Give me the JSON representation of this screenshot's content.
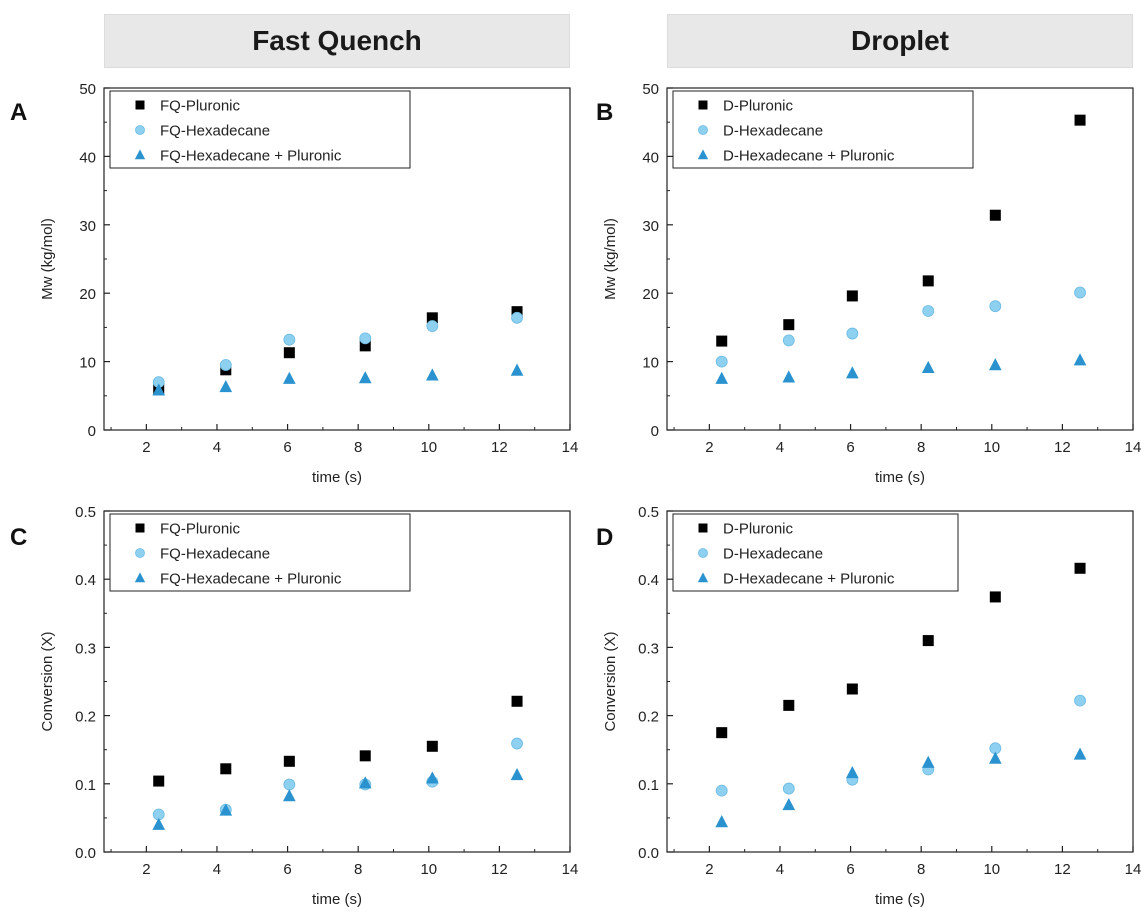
{
  "headers": {
    "left": "Fast Quench",
    "right": "Droplet"
  },
  "chart_data": [
    {
      "type": "scatter",
      "panel_label": "A",
      "xlabel": "time (s)",
      "ylabel": "Mw (kg/mol)",
      "xlim": [
        0.8,
        14
      ],
      "ylim": [
        0,
        50
      ],
      "xticks": [
        2,
        4,
        6,
        8,
        10,
        12,
        14
      ],
      "yticks": [
        0,
        10,
        20,
        30,
        40,
        50
      ],
      "ytick_labels": [
        "0",
        "10",
        "20",
        "30",
        "40",
        "50"
      ],
      "legend_position": "top-left",
      "x": [
        2.35,
        4.25,
        6.05,
        8.2,
        10.1,
        12.5
      ],
      "series": [
        {
          "name": "FQ-Pluronic",
          "marker": "square",
          "color": "#000000",
          "values": [
            6.0,
            8.8,
            11.3,
            12.3,
            16.4,
            17.3
          ]
        },
        {
          "name": "FQ-Hexadecane",
          "marker": "circle",
          "color": "#8ed0f0",
          "values": [
            7.0,
            9.5,
            13.2,
            13.4,
            15.2,
            16.4
          ]
        },
        {
          "name": "FQ-Hexadecane + Pluronic",
          "marker": "triangle",
          "color": "#2a93cf",
          "values": [
            5.8,
            6.3,
            7.5,
            7.6,
            8.0,
            8.7
          ]
        }
      ]
    },
    {
      "type": "scatter",
      "panel_label": "B",
      "xlabel": "time (s)",
      "ylabel": "Mw (kg/mol)",
      "xlim": [
        0.8,
        14
      ],
      "ylim": [
        0,
        50
      ],
      "xticks": [
        2,
        4,
        6,
        8,
        10,
        12,
        14
      ],
      "yticks": [
        0,
        10,
        20,
        30,
        40,
        50
      ],
      "ytick_labels": [
        "0",
        "10",
        "20",
        "30",
        "40",
        "50"
      ],
      "legend_position": "top-left",
      "x": [
        2.35,
        4.25,
        6.05,
        8.2,
        10.1,
        12.5
      ],
      "series": [
        {
          "name": "D-Pluronic",
          "marker": "square",
          "color": "#000000",
          "values": [
            13.0,
            15.4,
            19.6,
            21.8,
            31.4,
            45.3
          ]
        },
        {
          "name": "D-Hexadecane",
          "marker": "circle",
          "color": "#8ed0f0",
          "values": [
            10.0,
            13.1,
            14.1,
            17.4,
            18.1,
            20.1
          ]
        },
        {
          "name": "D-Hexadecane + Pluronic",
          "marker": "triangle",
          "color": "#2a93cf",
          "values": [
            7.5,
            7.7,
            8.3,
            9.1,
            9.5,
            10.2
          ]
        }
      ]
    },
    {
      "type": "scatter",
      "panel_label": "C",
      "xlabel": "time (s)",
      "ylabel": "Conversion (X)",
      "xlim": [
        0.8,
        14
      ],
      "ylim": [
        0,
        0.5
      ],
      "xticks": [
        2,
        4,
        6,
        8,
        10,
        12,
        14
      ],
      "yticks": [
        0,
        0.1,
        0.2,
        0.3,
        0.4,
        0.5
      ],
      "ytick_labels": [
        "0.0",
        "0.1",
        "0.2",
        "0.3",
        "0.4",
        "0.5"
      ],
      "legend_position": "top-left",
      "x": [
        2.35,
        4.25,
        6.05,
        8.2,
        10.1,
        12.5
      ],
      "series": [
        {
          "name": "FQ-Pluronic",
          "marker": "square",
          "color": "#000000",
          "values": [
            0.104,
            0.122,
            0.133,
            0.141,
            0.155,
            0.221
          ]
        },
        {
          "name": "FQ-Hexadecane",
          "marker": "circle",
          "color": "#8ed0f0",
          "values": [
            0.055,
            0.062,
            0.099,
            0.099,
            0.103,
            0.159
          ]
        },
        {
          "name": "FQ-Hexadecane + Pluronic",
          "marker": "triangle",
          "color": "#2a93cf",
          "values": [
            0.04,
            0.061,
            0.082,
            0.101,
            0.108,
            0.113
          ]
        }
      ]
    },
    {
      "type": "scatter",
      "panel_label": "D",
      "xlabel": "time (s)",
      "ylabel": "Conversion (X)",
      "xlim": [
        0.8,
        14
      ],
      "ylim": [
        0,
        0.5
      ],
      "xticks": [
        2,
        4,
        6,
        8,
        10,
        12,
        14
      ],
      "yticks": [
        0,
        0.1,
        0.2,
        0.3,
        0.4,
        0.5
      ],
      "ytick_labels": [
        "0.0",
        "0.1",
        "0.2",
        "0.3",
        "0.4",
        "0.5"
      ],
      "legend_position": "top-left",
      "x": [
        2.35,
        4.25,
        6.05,
        8.2,
        10.1,
        12.5
      ],
      "series": [
        {
          "name": "D-Pluronic",
          "marker": "square",
          "color": "#000000",
          "values": [
            0.175,
            0.215,
            0.239,
            0.31,
            0.374,
            0.416
          ]
        },
        {
          "name": "D-Hexadecane",
          "marker": "circle",
          "color": "#8ed0f0",
          "values": [
            0.09,
            0.093,
            0.106,
            0.121,
            0.152,
            0.222
          ]
        },
        {
          "name": "D-Hexadecane + Pluronic",
          "marker": "triangle",
          "color": "#2a93cf",
          "values": [
            0.044,
            0.069,
            0.116,
            0.131,
            0.137,
            0.143
          ]
        }
      ]
    }
  ]
}
